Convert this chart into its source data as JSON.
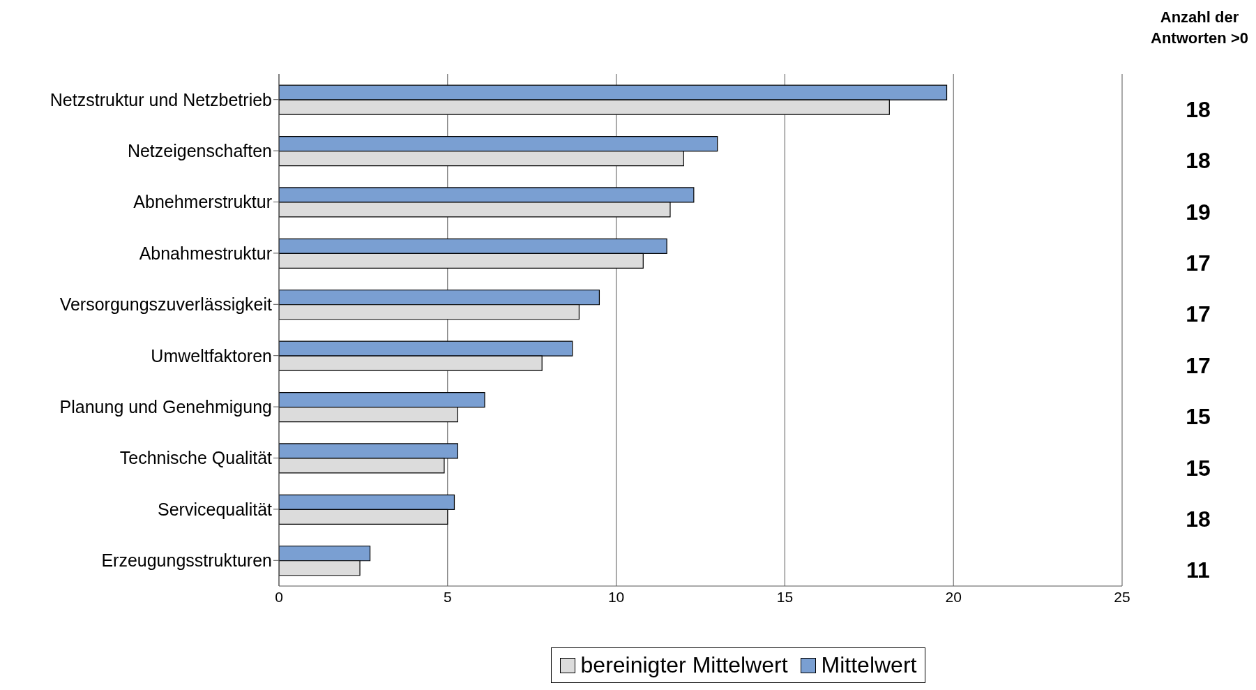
{
  "chart_data": {
    "type": "bar",
    "orientation": "horizontal",
    "categories": [
      "Netzstruktur und Netzbetrieb",
      "Netzeigenschaften",
      "Abnehmerstruktur",
      "Abnahmestruktur",
      "Versorgungszuverlässigkeit",
      "Umweltfaktoren",
      "Planung und Genehmigung",
      "Technische Qualität",
      "Servicequalität",
      "Erzeugungsstrukturen"
    ],
    "series": [
      {
        "name": "bereinigter Mittelwert",
        "color": "#dcdcdc",
        "values": [
          18.1,
          12.0,
          11.6,
          10.8,
          8.9,
          7.8,
          5.3,
          4.9,
          5.0,
          2.4
        ]
      },
      {
        "name": "Mittelwert",
        "color": "#7a9fd2",
        "values": [
          19.8,
          13.0,
          12.3,
          11.5,
          9.5,
          8.7,
          6.1,
          5.3,
          5.2,
          2.7
        ]
      }
    ],
    "xlim": [
      0,
      25
    ],
    "xticks": [
      0,
      5,
      10,
      15,
      20,
      25
    ],
    "grid": "x",
    "legend": "bottom",
    "annotations": [
      "Anzahl der Antworten >0",
      "18",
      "18",
      "19",
      "17",
      "17",
      "17",
      "15",
      "15",
      "18",
      "11"
    ]
  }
}
